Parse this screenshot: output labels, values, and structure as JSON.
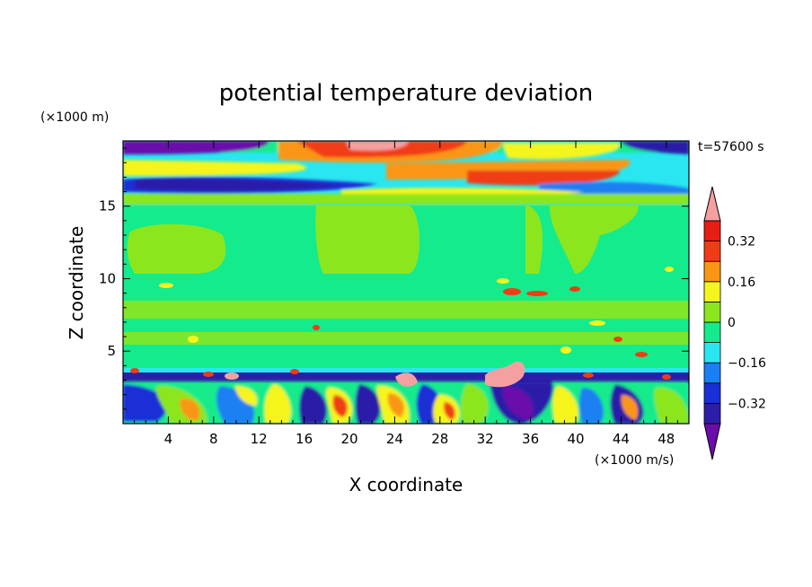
{
  "chart_data": {
    "type": "heatmap",
    "title": "potential temperature deviation",
    "xlabel": "X coordinate",
    "ylabel": "Z coordinate",
    "x_unit": "(×1000 m/s)",
    "y_unit": "(×1000 m)",
    "time_label": "t=57600 s",
    "xlim": [
      0,
      50
    ],
    "ylim": [
      0,
      19.5
    ],
    "x_ticks": [
      4,
      8,
      12,
      16,
      20,
      24,
      28,
      32,
      36,
      40,
      44,
      48
    ],
    "y_ticks": [
      5,
      10,
      15
    ],
    "colorbar": {
      "levels": [
        -0.4,
        -0.32,
        -0.24,
        -0.16,
        -0.08,
        0,
        0.08,
        0.16,
        0.24,
        0.32,
        0.4
      ],
      "labels": [
        {
          "value": 0.32,
          "text": "0.32"
        },
        {
          "value": 0.16,
          "text": "0.16"
        },
        {
          "value": 0,
          "text": "0"
        },
        {
          "value": -0.16,
          "text": "−0.16"
        },
        {
          "value": -0.32,
          "text": "−0.32"
        }
      ],
      "colors": [
        "#6a0dab",
        "#2c1ea8",
        "#1a2fd6",
        "#1a7ff2",
        "#2ae6f0",
        "#14eb8c",
        "#8ce61e",
        "#f5f51e",
        "#fa9614",
        "#f03c14",
        "#e61e14",
        "#f5a0a0"
      ]
    },
    "regions": [
      {
        "x0": 0,
        "x1": 50,
        "z0": 3.8,
        "z1": 16,
        "value": 0.0
      },
      {
        "x0": 0,
        "x1": 50,
        "z0": 0,
        "z1": 3.8,
        "value": 0.0
      },
      {
        "x0": 0,
        "x1": 50,
        "z0": 16,
        "z1": 19.5,
        "value": 0.0
      }
    ]
  }
}
